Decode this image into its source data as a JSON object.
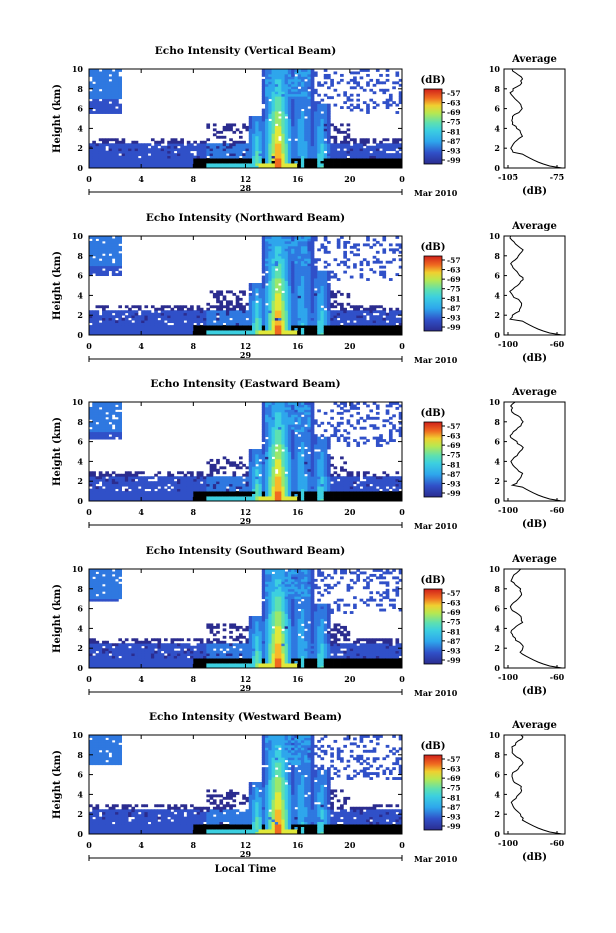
{
  "chart_data": [
    {
      "type": "heatmap",
      "title": "Echo Intensity (Vertical Beam)",
      "ylabel": "Height (km)",
      "xticks": [
        "0",
        "4",
        "8",
        "12",
        "16",
        "20",
        "0"
      ],
      "yticks": [
        "0",
        "2",
        "4",
        "6",
        "8",
        "10"
      ],
      "date_label": "28",
      "date_suffix": "Mar 2010",
      "colorbar": {
        "unit": "(dB)",
        "ticks": [
          "-57",
          "-63",
          "-69",
          "-75",
          "-81",
          "-87",
          "-93",
          "-99"
        ]
      },
      "average": {
        "title": "Average",
        "xlabel": "(dB)",
        "xticks": [
          "-105",
          "-75"
        ],
        "yticks": [
          "0",
          "2",
          "4",
          "6",
          "8",
          "10"
        ]
      },
      "xlabel": ""
    },
    {
      "type": "heatmap",
      "title": "Echo Intensity (Northward Beam)",
      "ylabel": "Height (km)",
      "xticks": [
        "0",
        "4",
        "8",
        "12",
        "16",
        "20",
        "0"
      ],
      "yticks": [
        "0",
        "2",
        "4",
        "6",
        "8",
        "10"
      ],
      "date_label": "29",
      "date_suffix": "Mar 2010",
      "colorbar": {
        "unit": "(dB)",
        "ticks": [
          "-57",
          "-63",
          "-69",
          "-75",
          "-81",
          "-87",
          "-93",
          "-99"
        ]
      },
      "average": {
        "title": "Average",
        "xlabel": "(dB)",
        "xticks": [
          "-100",
          "-60"
        ],
        "yticks": [
          "0",
          "2",
          "4",
          "6",
          "8",
          "10"
        ]
      },
      "xlabel": ""
    },
    {
      "type": "heatmap",
      "title": "Echo Intensity (Eastward Beam)",
      "ylabel": "Height (km)",
      "xticks": [
        "0",
        "4",
        "8",
        "12",
        "16",
        "20",
        "0"
      ],
      "yticks": [
        "0",
        "2",
        "4",
        "6",
        "8",
        "10"
      ],
      "date_label": "29",
      "date_suffix": "Mar 2010",
      "colorbar": {
        "unit": "(dB)",
        "ticks": [
          "-57",
          "-63",
          "-69",
          "-75",
          "-81",
          "-87",
          "-93",
          "-99"
        ]
      },
      "average": {
        "title": "Average",
        "xlabel": "(dB)",
        "xticks": [
          "-100",
          "-60"
        ],
        "yticks": [
          "0",
          "2",
          "4",
          "6",
          "8",
          "10"
        ]
      },
      "xlabel": ""
    },
    {
      "type": "heatmap",
      "title": "Echo Intensity (Southward Beam)",
      "ylabel": "Height (km)",
      "xticks": [
        "0",
        "4",
        "8",
        "12",
        "16",
        "20",
        "0"
      ],
      "yticks": [
        "0",
        "2",
        "4",
        "6",
        "8",
        "10"
      ],
      "date_label": "29",
      "date_suffix": "Mar 2010",
      "colorbar": {
        "unit": "(dB)",
        "ticks": [
          "-57",
          "-63",
          "-69",
          "-75",
          "-81",
          "-87",
          "-93",
          "-99"
        ]
      },
      "average": {
        "title": "Average",
        "xlabel": "(dB)",
        "xticks": [
          "-100",
          "-60"
        ],
        "yticks": [
          "0",
          "2",
          "4",
          "6",
          "8",
          "10"
        ]
      },
      "xlabel": ""
    },
    {
      "type": "heatmap",
      "title": "Echo Intensity (Westward Beam)",
      "ylabel": "Height (km)",
      "xticks": [
        "0",
        "4",
        "8",
        "12",
        "16",
        "20",
        "0"
      ],
      "yticks": [
        "0",
        "2",
        "4",
        "6",
        "8",
        "10"
      ],
      "date_label": "29",
      "date_suffix": "Mar 2010",
      "colorbar": {
        "unit": "(dB)",
        "ticks": [
          "-57",
          "-63",
          "-69",
          "-75",
          "-81",
          "-87",
          "-93",
          "-99"
        ]
      },
      "average": {
        "title": "Average",
        "xlabel": "(dB)",
        "xticks": [
          "-100",
          "-60"
        ],
        "yticks": [
          "0",
          "2",
          "4",
          "6",
          "8",
          "10"
        ]
      },
      "xlabel": "Local Time"
    }
  ],
  "colormap": [
    "#2b2c8f",
    "#3050c8",
    "#2f78e0",
    "#2ea6ec",
    "#3ccfe0",
    "#5ee0b0",
    "#9ae86c",
    "#e0e83a",
    "#f8b82a",
    "#f06a20",
    "#d0201a"
  ]
}
